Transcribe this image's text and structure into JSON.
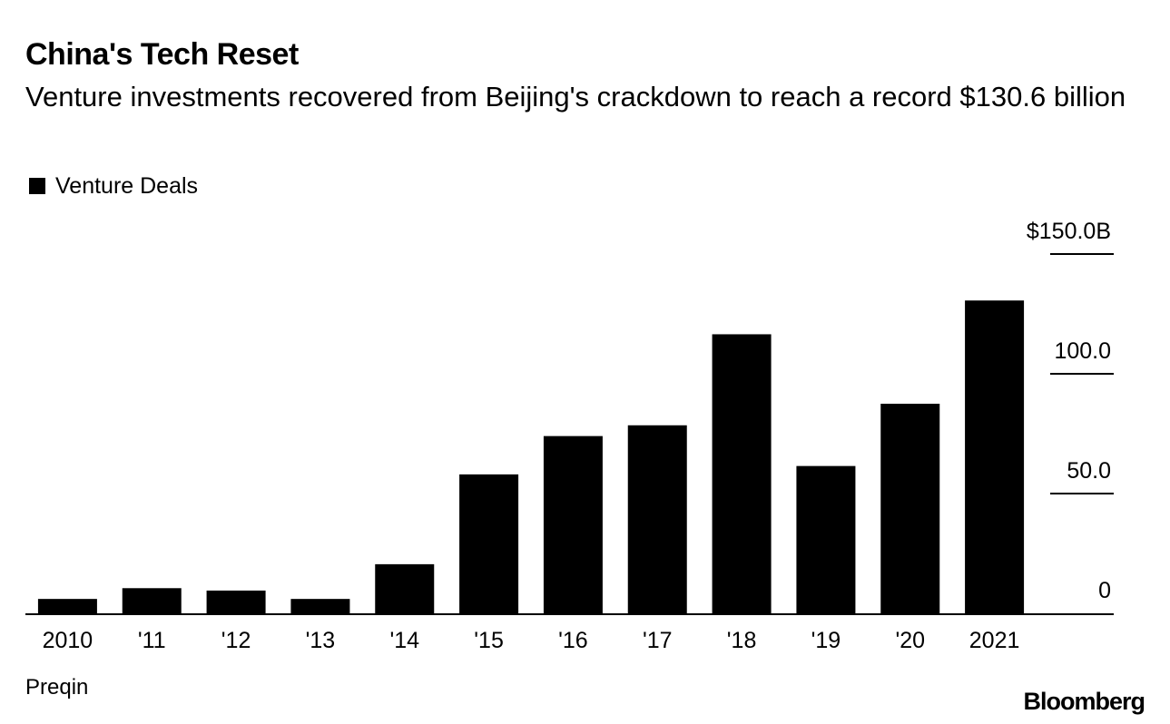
{
  "title": "China's Tech Reset",
  "subtitle": "Venture investments recovered from Beijing's crackdown to reach a record $130.6 billion",
  "legend": {
    "label": "Venture Deals",
    "color": "#000000"
  },
  "source": "Preqin",
  "logo": "Bloomberg",
  "chart_data": {
    "type": "bar",
    "categories": [
      "2010",
      "'11",
      "'12",
      "'13",
      "'14",
      "'15",
      "'16",
      "'17",
      "'18",
      "'19",
      "'20",
      "2021"
    ],
    "series": [
      {
        "name": "Venture Deals",
        "color": "#000000",
        "values": [
          6,
          10.5,
          9.5,
          6,
          20.5,
          58,
          74,
          78.5,
          116.5,
          61.5,
          87.5,
          130.6
        ]
      }
    ],
    "ylim": [
      0,
      150
    ],
    "yticks": [
      {
        "value": 0,
        "label": "0"
      },
      {
        "value": 50,
        "label": "50.0"
      },
      {
        "value": 100,
        "label": "100.0"
      },
      {
        "value": 150,
        "label": "$150.0B"
      }
    ],
    "y_axis_position": "right",
    "grid": false,
    "legend_position": "top-left"
  }
}
